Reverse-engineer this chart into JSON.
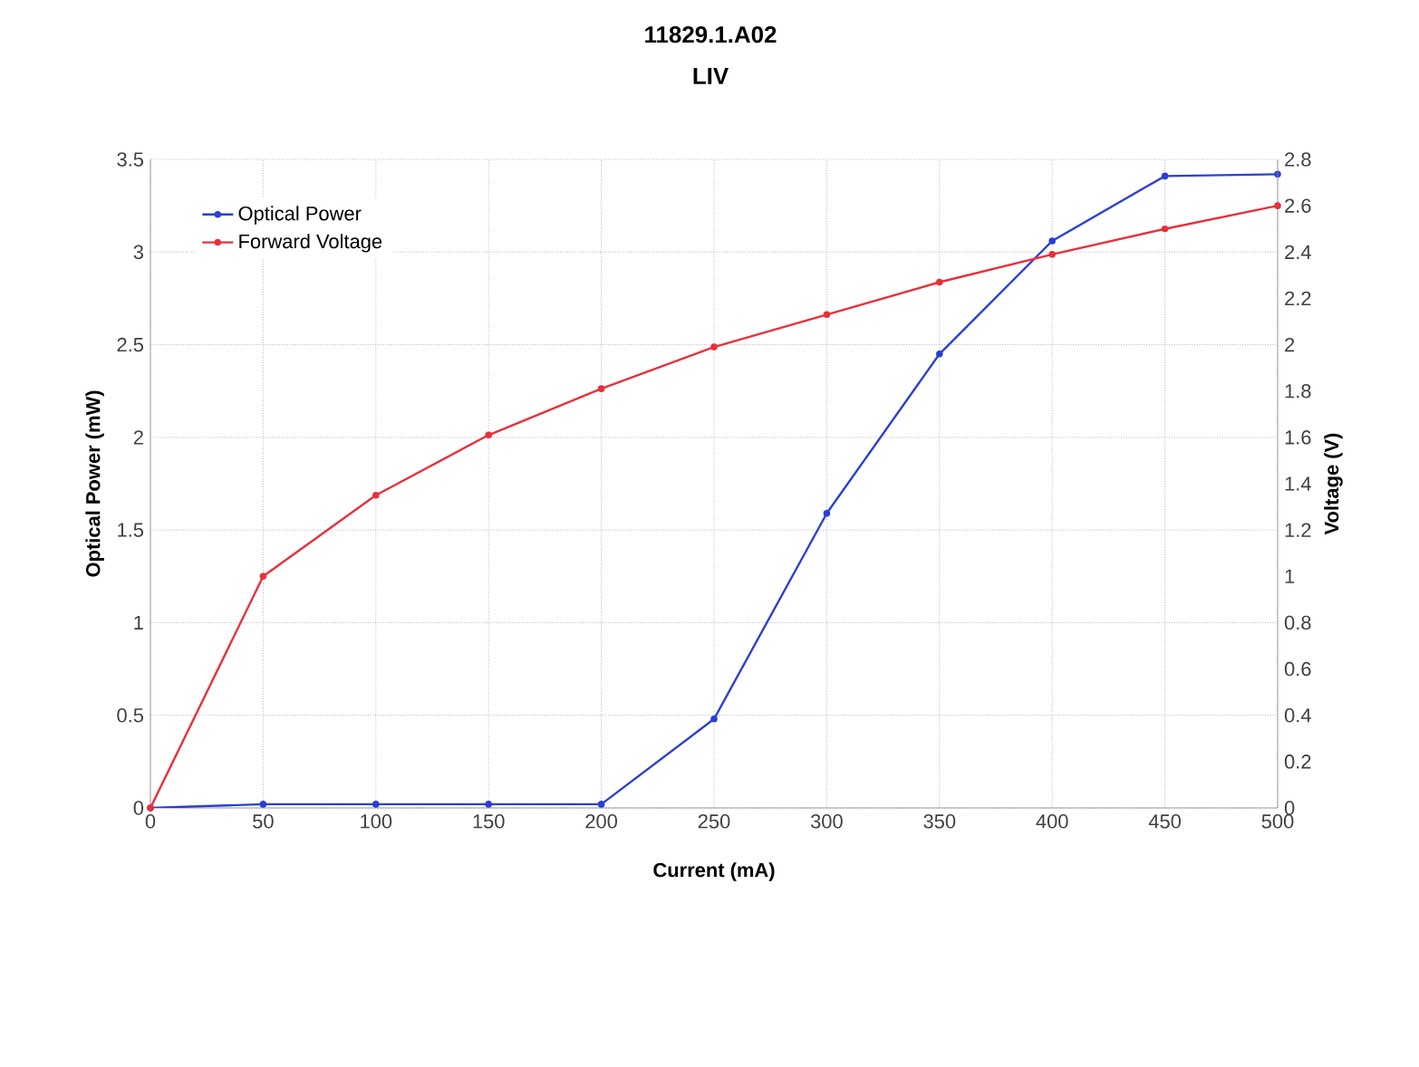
{
  "chart_data": {
    "type": "line",
    "title": "11829.1.A02",
    "subtitle": "LIV",
    "xlabel": "Current (mA)",
    "ylabel": "Optical Power (mW)",
    "y2label": "Voltage (V)",
    "x": [
      0,
      50,
      100,
      150,
      200,
      250,
      300,
      350,
      400,
      450,
      500
    ],
    "series": [
      {
        "name": "Optical Power",
        "color": "#2a3fd6",
        "values": [
          0,
          0.02,
          0.02,
          0.02,
          0.02,
          0.48,
          1.59,
          2.45,
          3.06,
          3.41,
          3.42
        ]
      },
      {
        "name": "Forward Voltage",
        "color": "#e8303a",
        "axis": "y2",
        "values": [
          0,
          1.0,
          1.35,
          1.61,
          1.81,
          1.99,
          2.13,
          2.27,
          2.39,
          2.5,
          2.6
        ]
      }
    ],
    "xlim": [
      0,
      500
    ],
    "xticks": [
      0,
      50,
      100,
      150,
      200,
      250,
      300,
      350,
      400,
      450,
      500
    ],
    "ylim": [
      0,
      3.5
    ],
    "yticks": [
      0,
      0.5,
      1,
      1.5,
      2,
      2.5,
      3,
      3.5
    ],
    "y2lim": [
      0,
      2.8
    ],
    "y2ticks": [
      0,
      0.2,
      0.4,
      0.6,
      0.8,
      1,
      1.2,
      1.4,
      1.6,
      1.8,
      2,
      2.2,
      2.4,
      2.6,
      2.8
    ],
    "grid": true,
    "legend": "top left",
    "marker": "circle",
    "line_style": "solid"
  }
}
